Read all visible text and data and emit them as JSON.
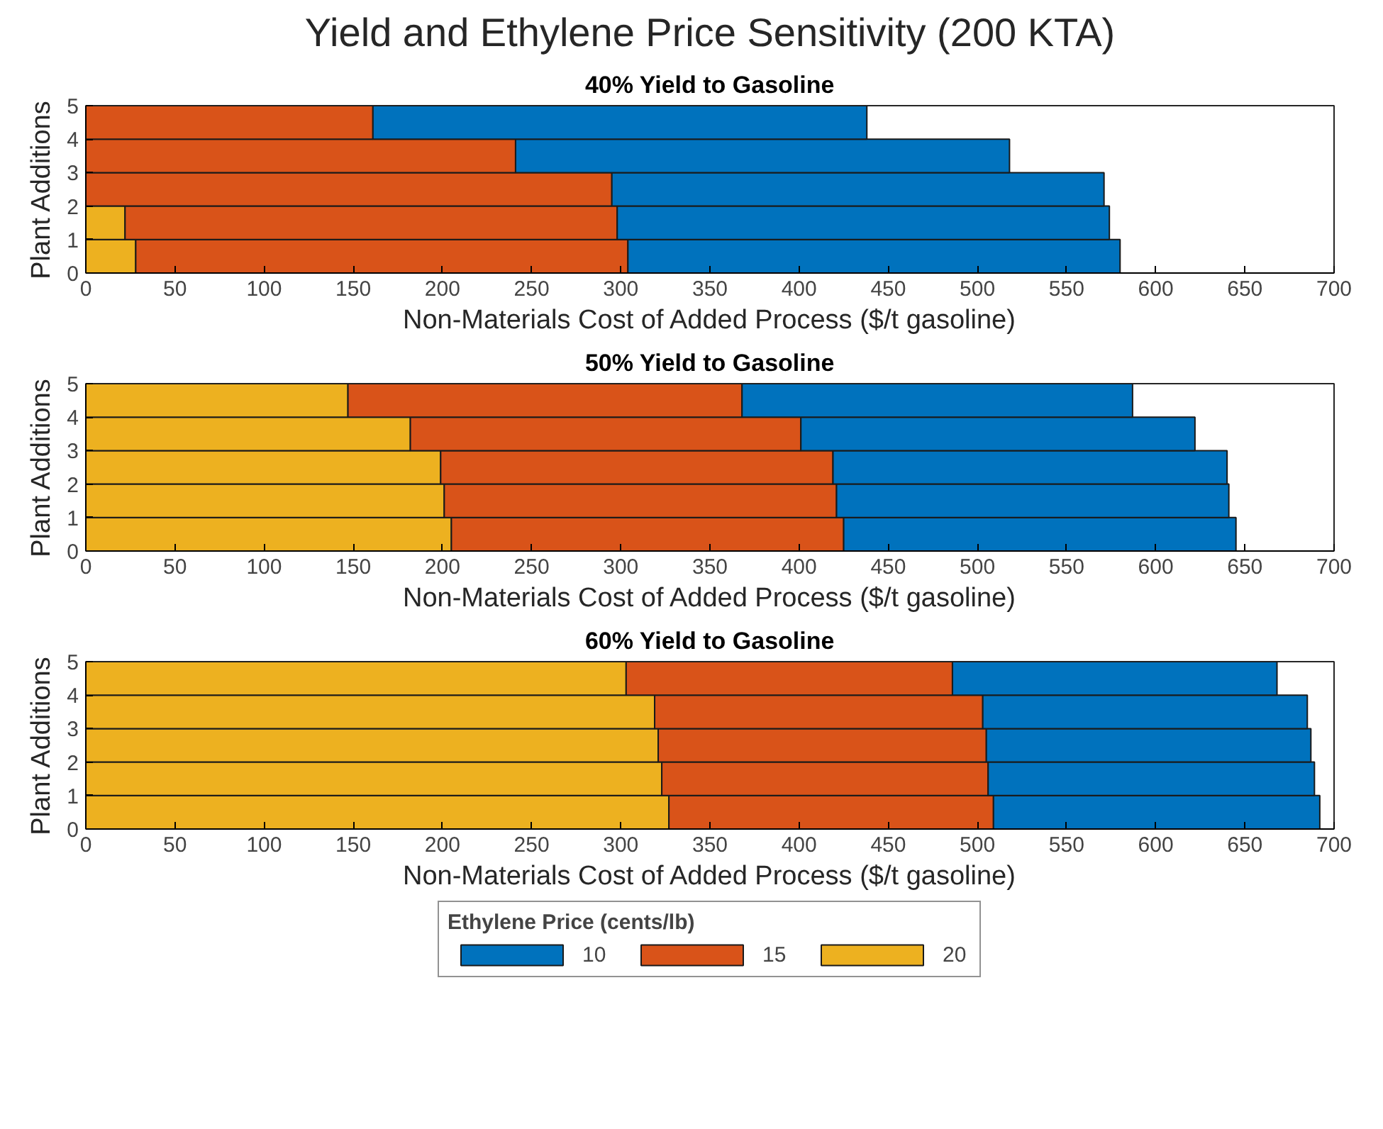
{
  "chart_data": [
    {
      "type": "bar",
      "orientation": "horizontal",
      "stacked": true,
      "title": "Yield and Ethylene Price Sensitivity (200 KTA)",
      "subtitle": "40% Yield to Gasoline",
      "xlabel": "Non-Materials Cost of Added Process ($/t gasoline)",
      "ylabel": "Plant Additions",
      "x": [
        0.5,
        1.5,
        2.5,
        3.5,
        4.5
      ],
      "xlim": [
        0,
        700
      ],
      "xticks": [
        0,
        50,
        100,
        150,
        200,
        250,
        300,
        350,
        400,
        450,
        500,
        550,
        600,
        650,
        700
      ],
      "ylim": [
        0,
        5
      ],
      "yticks": [
        0,
        1,
        2,
        3,
        4,
        5
      ],
      "grid": false,
      "series": [
        {
          "color": "#edb120",
          "values": [
            28,
            22,
            0,
            0,
            0
          ]
        },
        {
          "color": "#d95319",
          "values": [
            276,
            276,
            295,
            241,
            161
          ]
        },
        {
          "color": "#0072bd",
          "values": [
            276,
            276,
            276,
            277,
            277
          ]
        }
      ]
    },
    {
      "type": "bar",
      "orientation": "horizontal",
      "stacked": true,
      "title": "50% Yield to Gasoline",
      "xlabel": "Non-Materials Cost of Added Process ($/t gasoline)",
      "ylabel": "Plant Additions",
      "x": [
        0.5,
        1.5,
        2.5,
        3.5,
        4.5
      ],
      "xlim": [
        0,
        700
      ],
      "xticks": [
        0,
        50,
        100,
        150,
        200,
        250,
        300,
        350,
        400,
        450,
        500,
        550,
        600,
        650,
        700
      ],
      "ylim": [
        0,
        5
      ],
      "yticks": [
        0,
        1,
        2,
        3,
        4,
        5
      ],
      "grid": false,
      "series": [
        {
          "color": "#edb120",
          "values": [
            205,
            201,
            199,
            182,
            147
          ]
        },
        {
          "color": "#d95319",
          "values": [
            220,
            220,
            220,
            219,
            221
          ]
        },
        {
          "color": "#0072bd",
          "values": [
            220,
            220,
            221,
            221,
            219
          ]
        }
      ]
    },
    {
      "type": "bar",
      "orientation": "horizontal",
      "stacked": true,
      "title": "60% Yield to Gasoline",
      "xlabel": "Non-Materials Cost of Added Process ($/t gasoline)",
      "ylabel": "Plant Additions",
      "x": [
        0.5,
        1.5,
        2.5,
        3.5,
        4.5
      ],
      "xlim": [
        0,
        700
      ],
      "xticks": [
        0,
        50,
        100,
        150,
        200,
        250,
        300,
        350,
        400,
        450,
        500,
        550,
        600,
        650,
        700
      ],
      "ylim": [
        0,
        5
      ],
      "yticks": [
        0,
        1,
        2,
        3,
        4,
        5
      ],
      "grid": false,
      "legend": "bottom",
      "legend_title": "Ethylene Price (cents/lb)",
      "series": [
        {
          "name": "20",
          "color": "#edb120",
          "values": [
            327,
            323,
            321,
            319,
            303
          ]
        },
        {
          "name": "15",
          "color": "#d95319",
          "values": [
            182,
            183,
            184,
            184,
            183
          ]
        },
        {
          "name": "10",
          "color": "#0072bd",
          "values": [
            183,
            183,
            182,
            182,
            182
          ]
        }
      ]
    }
  ]
}
